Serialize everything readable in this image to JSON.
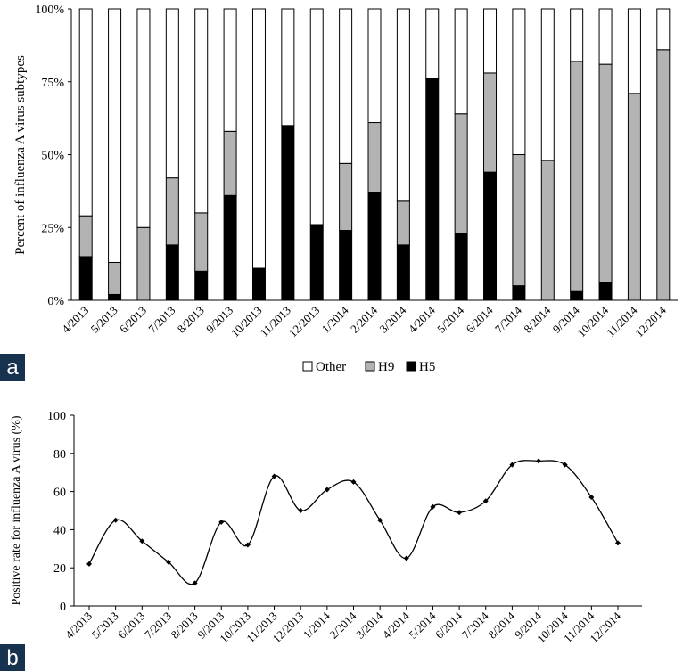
{
  "panel_a_label": "a",
  "panel_b_label": "b",
  "chart_data": [
    {
      "type": "bar",
      "stacked": true,
      "ylabel": "Percent of influenza A virus subtypes",
      "yticks": [
        "0%",
        "25%",
        "50%",
        "75%",
        "100%"
      ],
      "ylim": [
        0,
        100
      ],
      "categories": [
        "4/2013",
        "5/2013",
        "6/2013",
        "7/2013",
        "8/2013",
        "9/2013",
        "10/2013",
        "11/2013",
        "12/2013",
        "1/2014",
        "2/2014",
        "3/2014",
        "4/2014",
        "5/2014",
        "6/2014",
        "7/2014",
        "8/2014",
        "9/2014",
        "10/2014",
        "11/2014",
        "12/2014"
      ],
      "series": [
        {
          "name": "H5",
          "color": "#000000",
          "values": [
            15,
            2,
            0,
            19,
            10,
            36,
            11,
            60,
            26,
            24,
            37,
            19,
            76,
            23,
            44,
            5,
            0,
            3,
            6,
            0,
            0
          ]
        },
        {
          "name": "H9",
          "color": "#b3b3b3",
          "values": [
            14,
            11,
            25,
            23,
            20,
            22,
            0,
            0,
            0,
            23,
            24,
            15,
            0,
            41,
            34,
            45,
            48,
            79,
            75,
            71,
            86
          ]
        },
        {
          "name": "Other",
          "color": "#ffffff",
          "values": [
            71,
            87,
            75,
            58,
            70,
            42,
            89,
            40,
            74,
            53,
            39,
            66,
            24,
            36,
            22,
            50,
            52,
            18,
            19,
            29,
            14
          ]
        }
      ],
      "legend": [
        "Other",
        "H9",
        "H5"
      ]
    },
    {
      "type": "line",
      "ylabel": "Positive rate for influenza A virus (%)",
      "ylim": [
        0,
        100
      ],
      "yticks": [
        "0",
        "20",
        "40",
        "60",
        "80",
        "100"
      ],
      "categories": [
        "4/2013",
        "5/2013",
        "6/2013",
        "7/2013",
        "8/2013",
        "9/2013",
        "10/2013",
        "11/2013",
        "12/2013",
        "1/2014",
        "2/2014",
        "3/2014",
        "4/2014",
        "5/2014",
        "6/2014",
        "7/2014",
        "8/2014",
        "9/2014",
        "10/2014",
        "11/2014",
        "12/2014"
      ],
      "series": [
        {
          "name": "Positive rate",
          "values": [
            22,
            45,
            34,
            23,
            12,
            44,
            32,
            68,
            50,
            61,
            65,
            45,
            25,
            52,
            49,
            55,
            74,
            76,
            74,
            57,
            33
          ]
        }
      ]
    }
  ]
}
